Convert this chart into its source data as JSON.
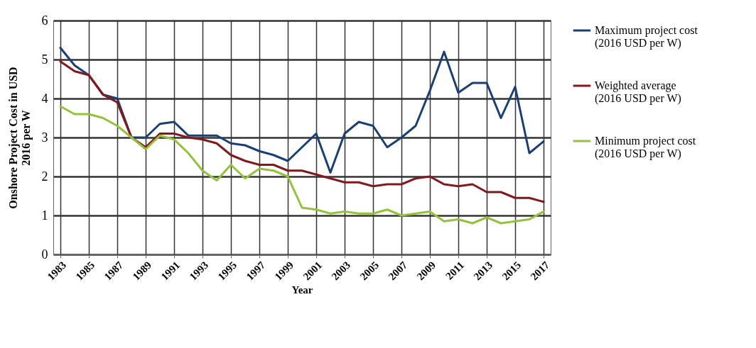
{
  "chart_data": {
    "type": "line",
    "xlabel": "Year",
    "ylabel": "Onshore Project Cost in USD\n2016 per W",
    "categories": [
      "1983",
      null,
      "1985",
      null,
      "1987",
      null,
      "1989",
      null,
      "1991",
      null,
      "1993",
      null,
      "1995",
      null,
      "1997",
      null,
      "1999",
      null,
      "2001",
      null,
      "2003",
      null,
      "2005",
      null,
      "2007",
      null,
      "2009",
      null,
      "2011",
      null,
      "2013",
      null,
      "2015",
      null,
      "2017"
    ],
    "series": [
      {
        "name": "Maximum project cost\n(2016 USD per W)",
        "color": "#1b3f73",
        "values": [
          5.3,
          4.85,
          4.6,
          4.1,
          4.0,
          3.0,
          3.0,
          3.35,
          3.4,
          3.05,
          3.05,
          3.05,
          2.85,
          2.8,
          2.65,
          2.55,
          2.4,
          2.75,
          3.1,
          2.1,
          3.1,
          3.4,
          3.3,
          2.75,
          3.0,
          3.3,
          4.2,
          5.2,
          4.15,
          4.4,
          4.4,
          3.5,
          4.3,
          2.6,
          2.9
        ]
      },
      {
        "name": "Weighted average\n(2016 USD per W)",
        "color": "#7f1a1f",
        "values": [
          4.95,
          4.7,
          4.6,
          4.1,
          3.9,
          3.0,
          2.75,
          3.1,
          3.1,
          3.0,
          2.95,
          2.85,
          2.55,
          2.4,
          2.3,
          2.3,
          2.15,
          2.15,
          2.05,
          1.95,
          1.85,
          1.85,
          1.75,
          1.8,
          1.8,
          1.95,
          2.0,
          1.8,
          1.75,
          1.8,
          1.6,
          1.6,
          1.45,
          1.45,
          1.35
        ]
      },
      {
        "name": "Minimum project cost\n(2016 USD per W)",
        "color": "#95c13d",
        "values": [
          3.8,
          3.6,
          3.6,
          3.5,
          3.3,
          3.0,
          2.7,
          3.05,
          2.95,
          2.6,
          2.15,
          1.9,
          2.3,
          1.95,
          2.2,
          2.15,
          2.0,
          1.2,
          1.15,
          1.05,
          1.1,
          1.05,
          1.05,
          1.15,
          1.0,
          1.05,
          1.1,
          0.85,
          0.9,
          0.8,
          0.95,
          0.8,
          0.85,
          0.9,
          1.1
        ]
      }
    ],
    "ylim": [
      0,
      6
    ],
    "yticks": [
      0,
      1,
      2,
      3,
      4,
      5,
      6
    ],
    "grid": true,
    "legend": "right"
  }
}
